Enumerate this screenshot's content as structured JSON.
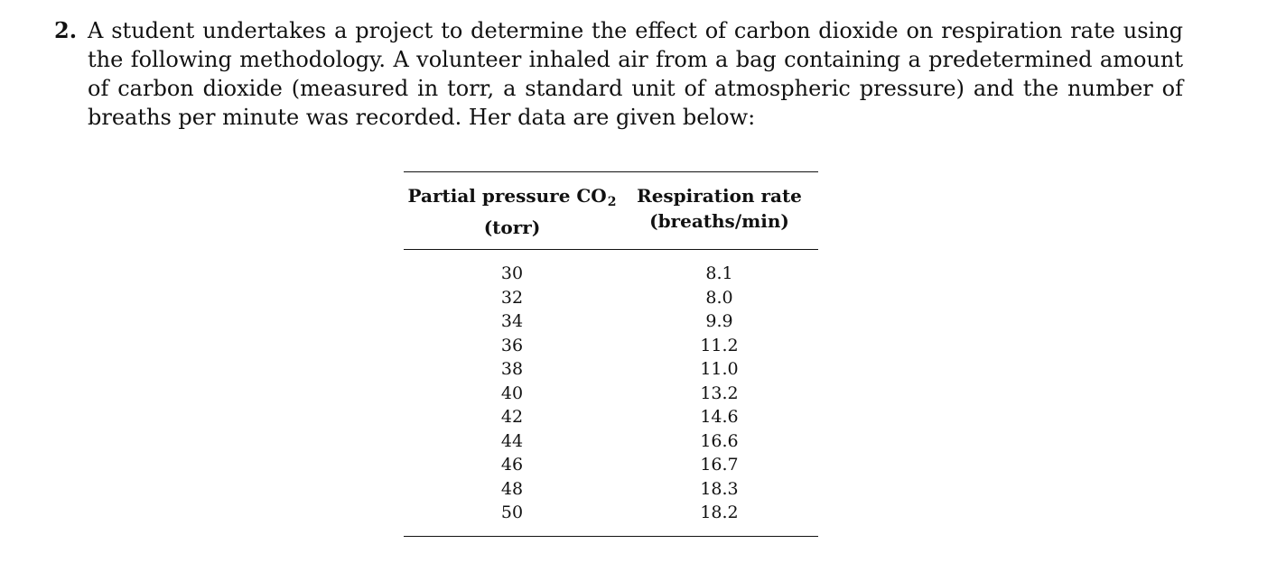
{
  "problem": {
    "number": "2.",
    "text": "A student undertakes a project to determine the effect of carbon dioxide on respiration rate using the following methodology. A volunteer inhaled air from a bag containing a predetermined amount of carbon dioxide (measured in torr, a standard unit of atmospheric pressure) and the number of breaths per minute was recorded. Her data are given below:"
  },
  "table": {
    "headers": [
      {
        "line1_main": "Partial pressure CO",
        "line1_sub": "2",
        "line2": "(torr)"
      },
      {
        "line1_main": "Respiration rate",
        "line1_sub": "",
        "line2": "(breaths/min)"
      }
    ],
    "rows": [
      [
        "30",
        "8.1"
      ],
      [
        "32",
        "8.0"
      ],
      [
        "34",
        "9.9"
      ],
      [
        "36",
        "11.2"
      ],
      [
        "38",
        "11.0"
      ],
      [
        "40",
        "13.2"
      ],
      [
        "42",
        "14.6"
      ],
      [
        "44",
        "16.6"
      ],
      [
        "46",
        "16.7"
      ],
      [
        "48",
        "18.3"
      ],
      [
        "50",
        "18.2"
      ]
    ]
  }
}
